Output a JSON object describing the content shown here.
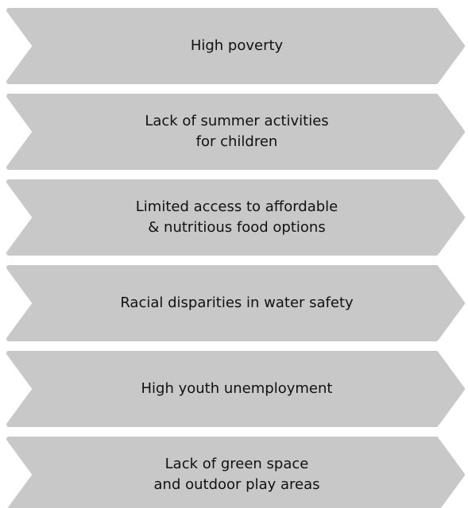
{
  "items": [
    {
      "lines": [
        "High poverty"
      ]
    },
    {
      "lines": [
        "Lack of summer activities",
        "for children"
      ]
    },
    {
      "lines": [
        "Limited access to affordable",
        "& nutritious food options"
      ]
    },
    {
      "lines": [
        "Racial disparities in water safety"
      ]
    },
    {
      "lines": [
        "High youth unemployment"
      ]
    },
    {
      "lines": [
        "Lack of green space",
        "and outdoor play areas"
      ]
    }
  ]
}
